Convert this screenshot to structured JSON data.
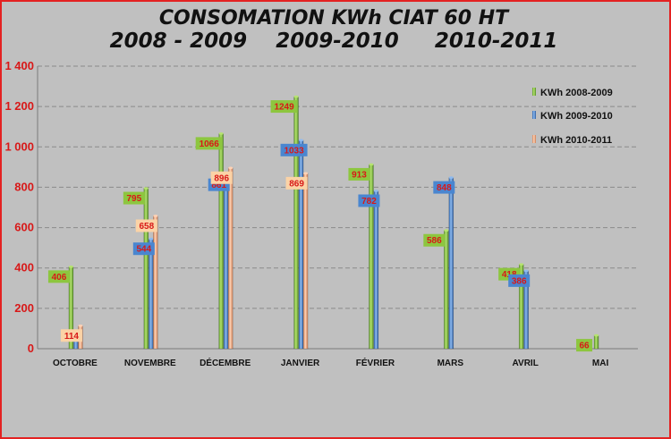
{
  "window": {
    "title_line1": "CONSOMATION KWh CIAT 60 HT",
    "title_line2": "2008 - 2009    2009-2010     2010-2011"
  },
  "chart_data": {
    "type": "bar",
    "title": "CONSOMATION KWh CIAT 60 HT",
    "subtitle": "2008 - 2009    2009-2010     2010-2011",
    "categories": [
      "OCTOBRE",
      "NOVEMBRE",
      "DÉCEMBRE",
      "JANVIER",
      "FÉVRIER",
      "MARS",
      "AVRIL",
      "MAI"
    ],
    "series": [
      {
        "name": "KWh 2008-2009",
        "values": [
          406,
          795,
          1066,
          1249,
          913,
          586,
          418,
          66
        ],
        "labels": [
          "406",
          "795",
          "1066",
          "1249",
          "913",
          "586",
          "418",
          "66"
        ]
      },
      {
        "name": "KWh 2009-2010",
        "values": [
          60,
          544,
          861,
          1033,
          782,
          848,
          386,
          null
        ],
        "labels": [
          "",
          "544",
          "861",
          "1033",
          "782",
          "848",
          "386",
          ""
        ]
      },
      {
        "name": "KWh 2010-2011",
        "values": [
          114,
          658,
          896,
          869,
          null,
          null,
          null,
          null
        ],
        "labels": [
          "114",
          "658",
          "896",
          "869",
          "",
          "",
          "",
          ""
        ]
      }
    ],
    "ylim": [
      0,
      1400
    ],
    "yticks": [
      "0",
      "200",
      "400",
      "600",
      "800",
      "1 000",
      "1 200",
      "1 400"
    ],
    "grid": true,
    "legend_position": "right",
    "colors": {
      "series": [
        "#7fc241",
        "#4a86d0",
        "#e8a27e"
      ],
      "label_boxes": [
        "#8dc63f",
        "#4a86d0",
        "#fbd3a6"
      ],
      "plot_background": "#c0c0c0",
      "frame_border": "#e32222",
      "tick_text": "#d81818"
    }
  }
}
